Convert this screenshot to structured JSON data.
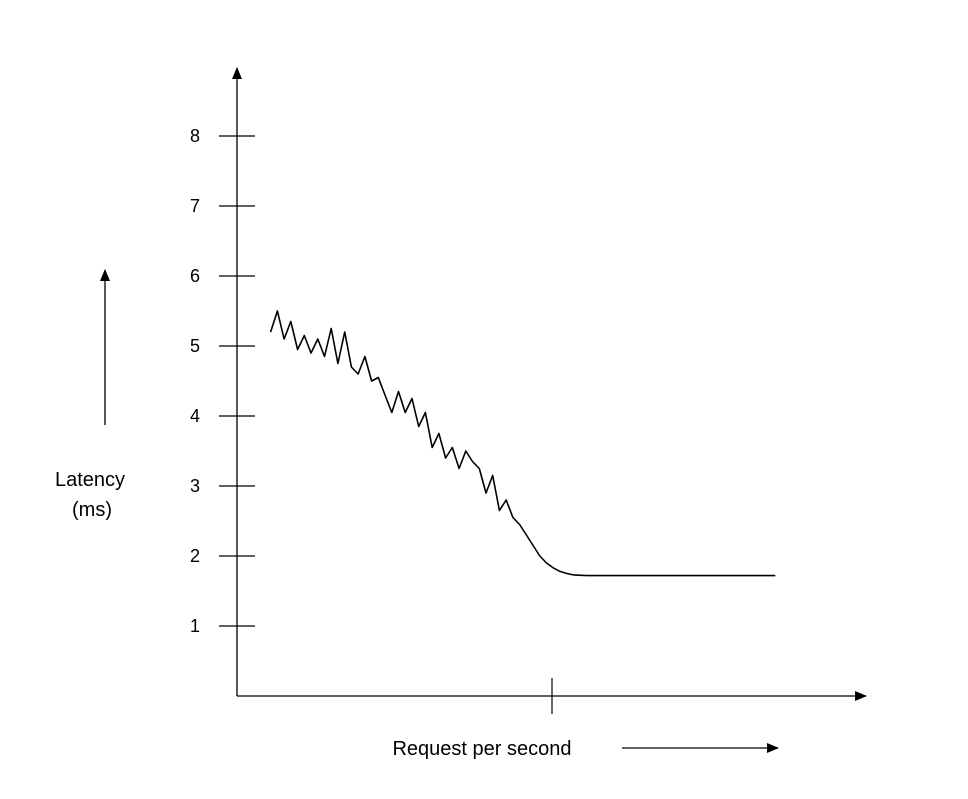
{
  "chart_data": {
    "type": "line",
    "title": "",
    "ylabel_line1": "Latency",
    "ylabel_line2": "(ms)",
    "xlabel": "Request per second",
    "ylim": [
      0,
      8
    ],
    "yticks": [
      "1",
      "2",
      "3",
      "4",
      "5",
      "6",
      "7",
      "8"
    ],
    "xticks": [
      ""
    ],
    "grid": false,
    "legend": "none",
    "line_color": "#000000",
    "series": [
      {
        "x": [
          0.5,
          0.6,
          0.7,
          0.8,
          0.9,
          1.0,
          1.1,
          1.2,
          1.3,
          1.4,
          1.5,
          1.6,
          1.7,
          1.8,
          1.9,
          2.0,
          2.1,
          2.2,
          2.3,
          2.4,
          2.5,
          2.6,
          2.7,
          2.8,
          2.9,
          3.0,
          3.1,
          3.2,
          3.3,
          3.4,
          3.5,
          3.6,
          3.7,
          3.8,
          3.9,
          4.0,
          4.1,
          4.2,
          4.3,
          4.4,
          4.5,
          4.6,
          4.7,
          4.8,
          4.9,
          5.0,
          5.2,
          5.4,
          5.6,
          5.8,
          6.0,
          6.5,
          7.0,
          7.5,
          8.0
        ],
        "values": [
          5.2,
          5.5,
          5.1,
          5.35,
          4.95,
          5.15,
          4.9,
          5.1,
          4.85,
          5.25,
          4.75,
          5.2,
          4.7,
          4.6,
          4.85,
          4.5,
          4.55,
          4.3,
          4.05,
          4.35,
          4.05,
          4.25,
          3.85,
          4.05,
          3.55,
          3.75,
          3.4,
          3.55,
          3.25,
          3.5,
          3.35,
          3.25,
          2.9,
          3.15,
          2.65,
          2.8,
          2.55,
          2.45,
          2.3,
          2.15,
          2.0,
          1.9,
          1.83,
          1.78,
          1.75,
          1.73,
          1.72,
          1.72,
          1.72,
          1.72,
          1.72,
          1.72,
          1.72,
          1.72,
          1.72
        ]
      }
    ],
    "xlim": [
      0,
      9
    ]
  }
}
